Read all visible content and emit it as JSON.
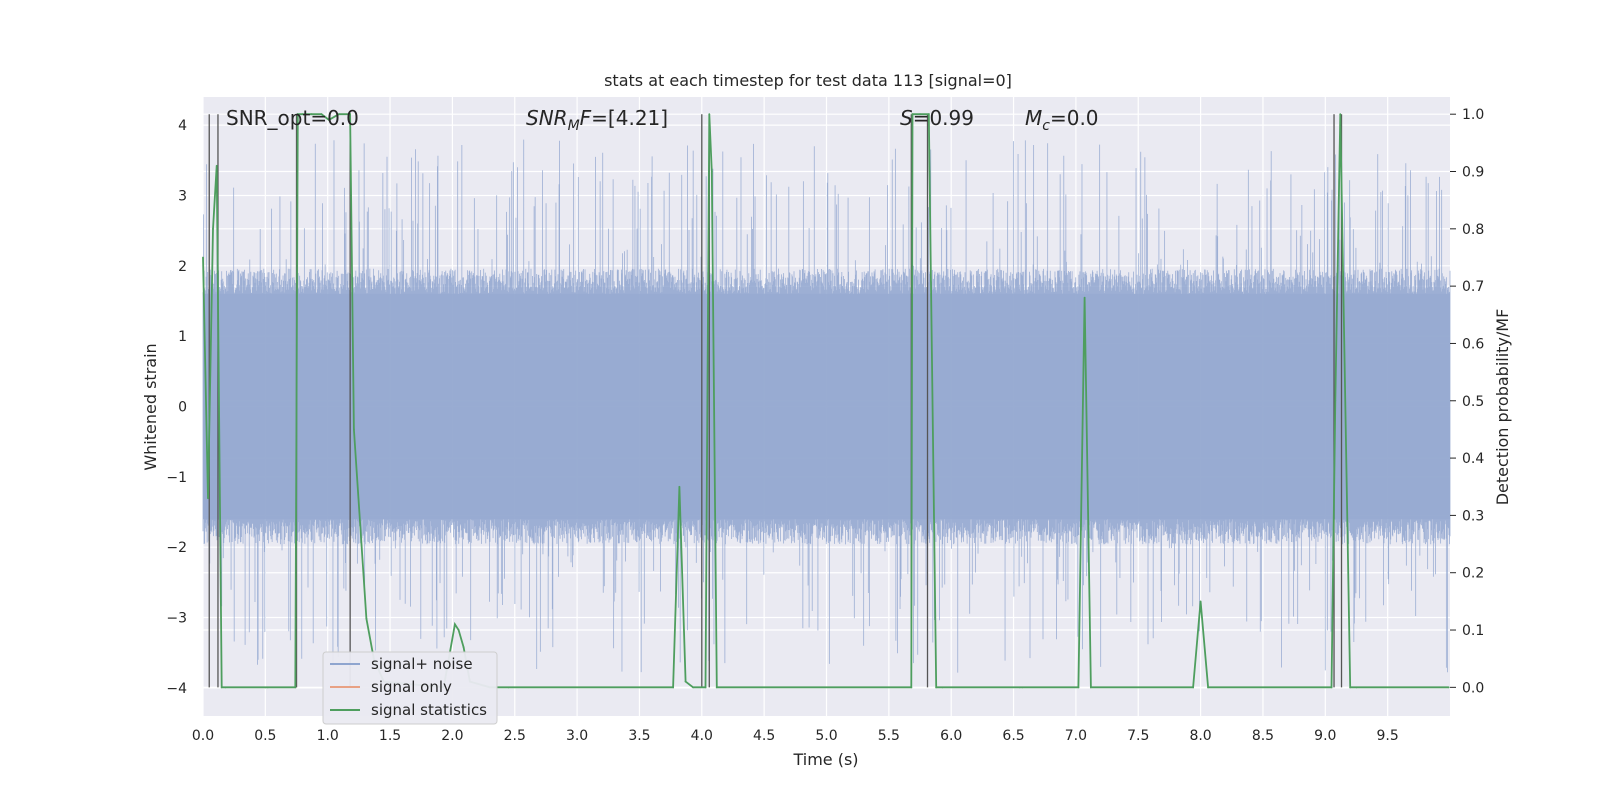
{
  "chart_data": {
    "type": "line",
    "title": "stats at each timestep for test data 113 [signal=0]",
    "xlabel": "Time (s)",
    "ylabel_left": "Whitened strain",
    "ylabel_right": "Detection probability/MF",
    "xlim": [
      0.0,
      10.0
    ],
    "ylim_left": [
      -4.4,
      4.4
    ],
    "ylim_right": [
      -0.05,
      1.03
    ],
    "xticks": [
      "0.0",
      "0.5",
      "1.0",
      "1.5",
      "2.0",
      "2.5",
      "3.0",
      "3.5",
      "4.0",
      "4.5",
      "5.0",
      "5.5",
      "6.0",
      "6.5",
      "7.0",
      "7.5",
      "8.0",
      "8.5",
      "9.0",
      "9.5"
    ],
    "yticks_left": [
      "4",
      "3",
      "2",
      "1",
      "0",
      "−1",
      "−2",
      "−3",
      "−4"
    ],
    "yticks_right": [
      "1.0",
      "0.9",
      "0.8",
      "0.7",
      "0.6",
      "0.5",
      "0.4",
      "0.3",
      "0.2",
      "0.1",
      "0.0"
    ],
    "grid": true,
    "annotations": {
      "snr_opt": "SNR_opt=0.0",
      "snr_mf": "=[4.21]",
      "s": "=0.99",
      "mc": "=0.0"
    },
    "legend": {
      "placement": "lower-left",
      "entries": [
        {
          "name": "signal+ noise",
          "color": "#8fa5cf"
        },
        {
          "name": "signal only",
          "color": "#e8a184"
        },
        {
          "name": "signal statistics",
          "color": "#4e9e5e"
        }
      ]
    },
    "series": [
      {
        "name": "signal statistics",
        "axis": "right",
        "x": [
          0.0,
          0.04,
          0.08,
          0.11,
          0.15,
          0.18,
          0.5,
          0.52,
          0.74,
          0.76,
          0.8,
          0.87,
          0.95,
          1.01,
          1.09,
          1.18,
          1.21,
          1.31,
          1.37,
          1.45,
          1.93,
          2.02,
          2.05,
          2.09,
          2.14,
          2.3,
          2.45,
          3.77,
          3.82,
          3.87,
          3.93,
          4.03,
          4.06,
          4.08,
          4.12,
          5.68,
          5.69,
          5.75,
          5.82,
          5.88,
          5.93,
          6.55,
          6.57,
          7.02,
          7.07,
          7.12,
          7.94,
          8.0,
          8.06,
          9.05,
          9.08,
          9.12,
          9.2,
          9.25,
          9.99
        ],
        "y": [
          0.75,
          0.33,
          0.8,
          0.91,
          0.0,
          0.0,
          0.0,
          0.0,
          0.0,
          1.0,
          1.0,
          1.0,
          1.0,
          0.99,
          1.0,
          1.0,
          0.45,
          0.12,
          0.05,
          0.01,
          0.0,
          0.11,
          0.1,
          0.07,
          0.01,
          0.0,
          0.0,
          0.0,
          0.35,
          0.01,
          0.0,
          0.0,
          1.0,
          0.9,
          0.0,
          0.0,
          1.0,
          1.0,
          1.0,
          0.0,
          0.0,
          0.0,
          0.0,
          0.0,
          0.68,
          0.0,
          0.0,
          0.15,
          0.0,
          0.0,
          0.5,
          1.0,
          0.0,
          0.0,
          0.0
        ]
      }
    ],
    "signal_noise_envelope": {
      "name": "signal+ noise",
      "axis": "left",
      "core_band": [
        -1.6,
        1.6
      ],
      "typical_peak_range": [
        2.0,
        3.8
      ],
      "max_abs": 4.0
    },
    "vertical_markers": {
      "axis": "right",
      "x": [
        0.05,
        0.12,
        0.75,
        1.18,
        4.0,
        4.06,
        5.68,
        5.81,
        9.07,
        9.13
      ]
    }
  }
}
